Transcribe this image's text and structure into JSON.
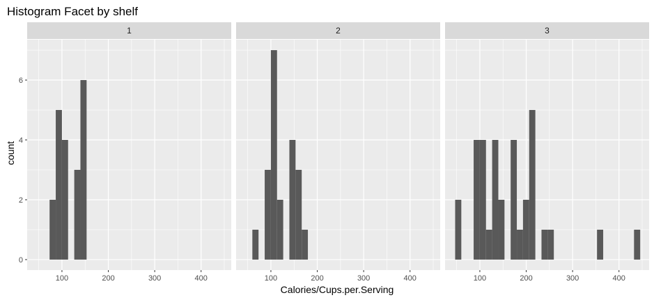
{
  "chart_data": {
    "type": "bar",
    "title": "Histogram Facet by shelf",
    "xlabel": "Calories/Cups.per.Serving",
    "ylabel": "count",
    "xlim": [
      25,
      465
    ],
    "ylim": [
      -0.35,
      7.35
    ],
    "x_ticks": [
      100,
      200,
      300,
      400
    ],
    "y_ticks": [
      0,
      2,
      4,
      6
    ],
    "bin_width": 13.3,
    "grid": true,
    "colors": {
      "bar": "#595959",
      "panel_bg": "#ebebeb",
      "strip_bg": "#d9d9d9",
      "grid": "#ffffff"
    },
    "facets": [
      {
        "label": "1",
        "bins": [
          {
            "x": 80,
            "count": 2
          },
          {
            "x": 93.3,
            "count": 5
          },
          {
            "x": 106.6,
            "count": 4
          },
          {
            "x": 133.2,
            "count": 3
          },
          {
            "x": 146.5,
            "count": 6
          }
        ]
      },
      {
        "label": "2",
        "bins": [
          {
            "x": 66.7,
            "count": 1
          },
          {
            "x": 93.3,
            "count": 3
          },
          {
            "x": 106.6,
            "count": 7
          },
          {
            "x": 119.9,
            "count": 2
          },
          {
            "x": 146.5,
            "count": 4
          },
          {
            "x": 159.8,
            "count": 3
          },
          {
            "x": 173.1,
            "count": 1
          }
        ]
      },
      {
        "label": "3",
        "bins": [
          {
            "x": 53.4,
            "count": 2
          },
          {
            "x": 93.3,
            "count": 4
          },
          {
            "x": 106.6,
            "count": 4
          },
          {
            "x": 119.9,
            "count": 1
          },
          {
            "x": 133.2,
            "count": 4
          },
          {
            "x": 146.5,
            "count": 2
          },
          {
            "x": 173.1,
            "count": 4
          },
          {
            "x": 186.4,
            "count": 1
          },
          {
            "x": 199.7,
            "count": 2
          },
          {
            "x": 213.0,
            "count": 5
          },
          {
            "x": 239.6,
            "count": 1
          },
          {
            "x": 252.9,
            "count": 1
          },
          {
            "x": 359.3,
            "count": 1
          },
          {
            "x": 439.1,
            "count": 1
          }
        ]
      }
    ]
  }
}
